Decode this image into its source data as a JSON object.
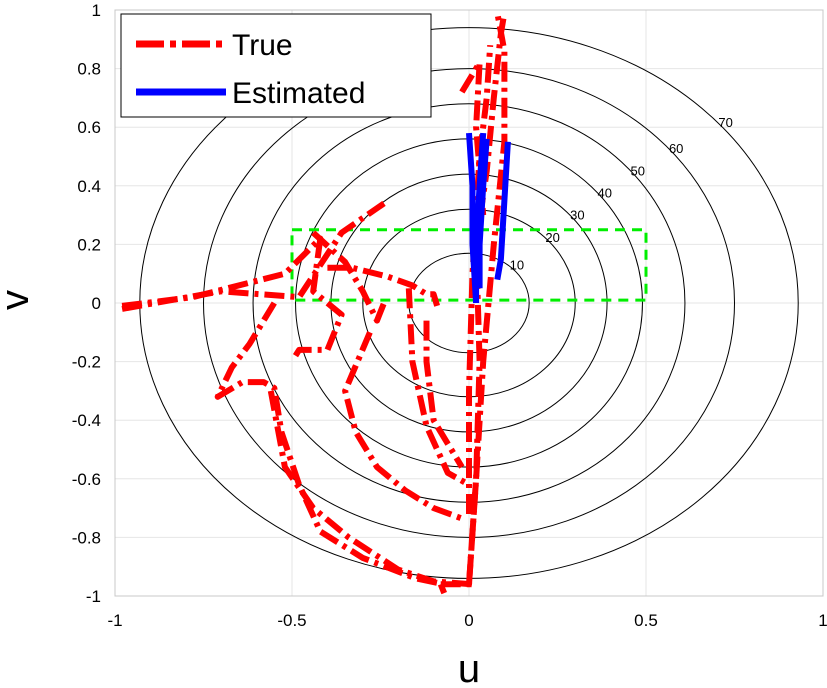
{
  "chart_data": {
    "type": "line",
    "title": "",
    "xlabel": "u",
    "ylabel": "v",
    "xlim": [
      -1,
      1
    ],
    "ylim": [
      -1,
      1
    ],
    "x_ticks": [
      "-1",
      "-0.5",
      "0",
      "0.5",
      "1"
    ],
    "y_ticks": [
      "-1",
      "-0.8",
      "-0.6",
      "-0.4",
      "-0.2",
      "0",
      "0.2",
      "0.4",
      "0.6",
      "0.8",
      "1"
    ],
    "grid": true,
    "legend_position": "top-left",
    "legend": [
      {
        "name": "True",
        "color": "#ff0000",
        "style": "dash-dot"
      },
      {
        "name": "Estimated",
        "color": "#0000ff",
        "style": "solid"
      }
    ],
    "contours": {
      "center": [
        0,
        0
      ],
      "levels": [
        {
          "label": "10",
          "rx": 0.17,
          "ry": 0.17
        },
        {
          "label": "20",
          "rx": 0.3,
          "ry": 0.32
        },
        {
          "label": "30",
          "rx": 0.39,
          "ry": 0.44
        },
        {
          "label": "40",
          "rx": 0.49,
          "ry": 0.56
        },
        {
          "label": "50",
          "rx": 0.61,
          "ry": 0.68
        },
        {
          "label": "60",
          "rx": 0.75,
          "ry": 0.8
        },
        {
          "label": "70",
          "rx": 0.93,
          "ry": 0.94
        }
      ]
    },
    "region_box": {
      "u": [
        -0.5,
        0.5
      ],
      "v": [
        0.01,
        0.25
      ],
      "color": "#00ee00"
    },
    "series": [
      {
        "name": "True",
        "color": "#ff0000",
        "paths": [
          [
            [
              -0.98,
              -0.02
            ],
            [
              -0.7,
              0.04
            ],
            [
              -0.48,
              0.02
            ],
            [
              -0.36,
              0.24
            ],
            [
              -0.24,
              0.34
            ]
          ],
          [
            [
              -0.98,
              -0.01
            ],
            [
              -0.78,
              0.02
            ],
            [
              -0.52,
              0.1
            ],
            [
              -0.42,
              0.22
            ],
            [
              -0.44,
              0.04
            ],
            [
              -0.36,
              -0.04
            ],
            [
              -0.4,
              -0.16
            ],
            [
              -0.48,
              -0.16
            ],
            [
              -0.49,
              -0.18
            ]
          ],
          [
            [
              -0.44,
              0.24
            ],
            [
              -0.35,
              0.14
            ],
            [
              -0.3,
              0.04
            ],
            [
              -0.26,
              -0.06
            ],
            [
              -0.24,
              0.0
            ]
          ],
          [
            [
              -0.4,
              0.12
            ],
            [
              -0.33,
              0.12
            ],
            [
              -0.23,
              0.09
            ],
            [
              -0.16,
              0.06
            ],
            [
              -0.12,
              0.03
            ],
            [
              -0.1,
              0.03
            ],
            [
              -0.09,
              -0.01
            ]
          ],
          [
            [
              -0.55,
              0.0
            ],
            [
              -0.62,
              -0.14
            ],
            [
              -0.67,
              -0.22
            ],
            [
              -0.71,
              -0.32
            ],
            [
              -0.64,
              -0.27
            ],
            [
              -0.58,
              -0.27
            ],
            [
              -0.55,
              -0.29
            ],
            [
              -0.53,
              -0.44
            ],
            [
              -0.48,
              -0.62
            ],
            [
              -0.42,
              -0.78
            ],
            [
              -0.3,
              -0.87
            ],
            [
              -0.15,
              -0.94
            ],
            [
              -0.07,
              -0.96
            ]
          ],
          [
            [
              -0.56,
              -0.3
            ],
            [
              -0.52,
              -0.56
            ],
            [
              -0.44,
              -0.7
            ],
            [
              -0.34,
              -0.8
            ],
            [
              -0.2,
              -0.91
            ],
            [
              -0.1,
              -0.95
            ],
            [
              0.01,
              -0.96
            ]
          ],
          [
            [
              -0.28,
              -0.1
            ],
            [
              -0.35,
              -0.3
            ],
            [
              -0.32,
              -0.44
            ],
            [
              -0.26,
              -0.56
            ],
            [
              -0.18,
              -0.64
            ],
            [
              -0.1,
              -0.7
            ],
            [
              -0.01,
              -0.74
            ]
          ],
          [
            [
              -0.17,
              0.05
            ],
            [
              -0.16,
              -0.2
            ],
            [
              -0.12,
              -0.42
            ],
            [
              -0.06,
              -0.58
            ],
            [
              0.0,
              -0.62
            ]
          ],
          [
            [
              -0.12,
              -0.06
            ],
            [
              -0.12,
              -0.2
            ],
            [
              -0.1,
              -0.4
            ],
            [
              -0.05,
              -0.5
            ],
            [
              -0.02,
              -0.56
            ]
          ],
          [
            [
              -0.08,
              -0.96
            ],
            [
              0.0,
              -0.96
            ],
            [
              0.02,
              -0.6
            ],
            [
              0.03,
              -0.2
            ],
            [
              0.02,
              0.2
            ],
            [
              0.05,
              0.45
            ],
            [
              0.07,
              0.7
            ],
            [
              0.09,
              0.92
            ],
            [
              0.1,
              0.99
            ]
          ],
          [
            [
              0.0,
              -0.72
            ],
            [
              0.0,
              -0.3
            ],
            [
              0.01,
              0.1
            ],
            [
              0.03,
              0.5
            ],
            [
              0.05,
              0.7
            ],
            [
              0.06,
              0.88
            ]
          ],
          [
            [
              0.0,
              -0.96
            ],
            [
              0.02,
              -0.6
            ],
            [
              0.04,
              -0.2
            ],
            [
              0.07,
              0.2
            ],
            [
              0.1,
              0.55
            ],
            [
              0.1,
              0.86
            ],
            [
              0.08,
              0.99
            ]
          ],
          [
            [
              -0.02,
              0.72
            ],
            [
              0.03,
              0.82
            ],
            [
              0.02,
              0.6
            ],
            [
              0.04,
              0.3
            ]
          ],
          [
            [
              -0.07,
              -0.99
            ],
            [
              -0.08,
              -0.96
            ]
          ]
        ]
      },
      {
        "name": "Estimated",
        "color": "#0000ff",
        "paths": [
          [
            [
              0.0,
              0.58
            ],
            [
              0.01,
              0.4
            ],
            [
              0.01,
              0.2
            ],
            [
              0.02,
              0.0
            ]
          ],
          [
            [
              0.04,
              0.58
            ],
            [
              0.03,
              0.4
            ],
            [
              0.02,
              0.2
            ],
            [
              0.02,
              0.0
            ]
          ],
          [
            [
              0.05,
              0.56
            ],
            [
              0.04,
              0.4
            ],
            [
              0.03,
              0.2
            ],
            [
              0.03,
              0.05
            ]
          ],
          [
            [
              0.11,
              0.55
            ],
            [
              0.1,
              0.35
            ],
            [
              0.09,
              0.15
            ],
            [
              0.08,
              0.08
            ]
          ]
        ]
      }
    ]
  }
}
